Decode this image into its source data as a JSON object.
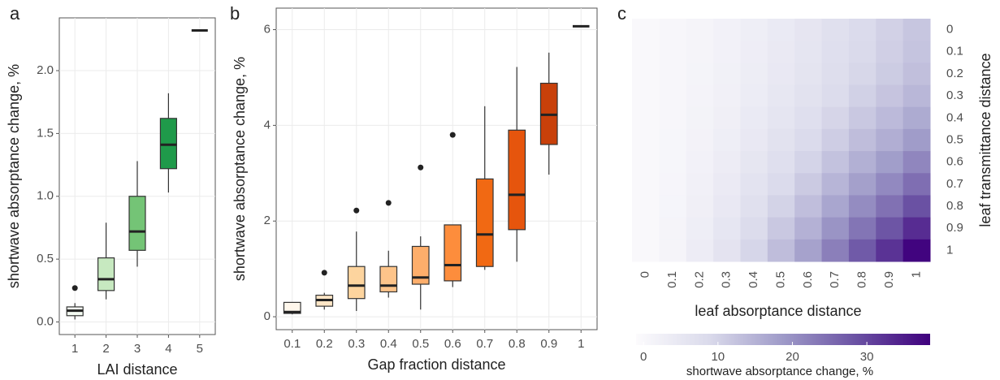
{
  "chart_data": [
    {
      "type": "box",
      "panel_label": "a",
      "xlabel": "LAI distance",
      "ylabel": "shortwave absorptance change, %",
      "categories": [
        "1",
        "2",
        "3",
        "4",
        "5"
      ],
      "min": [
        0.02,
        0.18,
        0.44,
        1.03,
        2.32
      ],
      "q1": [
        0.05,
        0.25,
        0.57,
        1.22,
        2.32
      ],
      "median": [
        0.09,
        0.34,
        0.72,
        1.41,
        2.32
      ],
      "q3": [
        0.12,
        0.51,
        1.0,
        1.62,
        2.32
      ],
      "max": [
        0.15,
        0.79,
        1.28,
        1.82,
        2.32
      ],
      "outliers": [
        [
          0.27
        ],
        [],
        [],
        [],
        []
      ],
      "colors": [
        "#f4fbf2",
        "#c7e9c0",
        "#74c476",
        "#1f9a4a",
        "#00441b"
      ],
      "ylim": [
        -0.1,
        2.42
      ],
      "yticks": [
        {
          "value": 0,
          "label": "0.0"
        },
        0.5,
        {
          "value": 1,
          "label": "1.0"
        },
        1.5,
        {
          "value": 2,
          "label": "2.0"
        }
      ],
      "grid": true
    },
    {
      "type": "box",
      "panel_label": "b",
      "xlabel": "Gap fraction distance",
      "ylabel": "shortwave absorptance change, %",
      "categories": [
        "0.1",
        "0.2",
        "0.3",
        "0.4",
        "0.5",
        "0.6",
        "0.7",
        "0.8",
        "0.9",
        "1"
      ],
      "min": [
        0.05,
        0.15,
        0.12,
        0.4,
        0.15,
        0.62,
        0.98,
        1.15,
        2.97,
        6.07
      ],
      "q1": [
        0.07,
        0.22,
        0.38,
        0.52,
        0.68,
        0.75,
        1.05,
        1.82,
        3.6,
        6.07
      ],
      "median": [
        0.1,
        0.35,
        0.65,
        0.65,
        0.82,
        1.08,
        1.72,
        2.55,
        4.22,
        6.07
      ],
      "q3": [
        0.3,
        0.45,
        1.05,
        1.05,
        1.47,
        1.92,
        2.88,
        3.9,
        4.88,
        6.07
      ],
      "max": [
        0.3,
        0.5,
        1.78,
        1.38,
        1.68,
        1.92,
        4.4,
        5.22,
        5.52,
        6.07
      ],
      "outliers": [
        [],
        [
          0.92
        ],
        [
          2.22
        ],
        [
          2.38
        ],
        [
          3.12
        ],
        [
          3.8
        ],
        [],
        [],
        [],
        []
      ],
      "colors": [
        "#fff7ec",
        "#fee6c6",
        "#fdd49e",
        "#fdc48a",
        "#fdae6b",
        "#fd8d3c",
        "#f16913",
        "#e6550d",
        "#c8400a",
        "#7f2704"
      ],
      "ylim": [
        -0.27,
        6.45
      ],
      "yticks": [
        0,
        2,
        4,
        6
      ],
      "grid": true
    },
    {
      "type": "heatmap",
      "panel_label": "c",
      "xlabel": "leaf absorptance distance",
      "ylabel": "leaf transmittance distance",
      "x": [
        "0",
        "0.1",
        "0.2",
        "0.3",
        "0.4",
        "0.5",
        "0.6",
        "0.7",
        "0.8",
        "0.9",
        "1"
      ],
      "y": [
        "0",
        "0.1",
        "0.2",
        "0.3",
        "0.4",
        "0.5",
        "0.6",
        "0.7",
        "0.8",
        "0.9",
        "1"
      ],
      "values": [
        [
          0,
          0.4,
          1.1,
          1.9,
          3.0,
          4.2,
          5.5,
          7.1,
          8.6,
          10.2,
          12
        ],
        [
          0,
          0.4,
          1.1,
          2.0,
          3.1,
          4.3,
          5.7,
          7.3,
          8.9,
          10.5,
          12.3
        ],
        [
          0,
          0.4,
          1.2,
          2.1,
          3.3,
          4.6,
          6.0,
          7.7,
          9.4,
          11.1,
          13
        ],
        [
          0,
          0.4,
          1.3,
          2.3,
          3.6,
          5.0,
          6.6,
          8.4,
          10.3,
          12.2,
          14.3
        ],
        [
          0,
          0.5,
          1.5,
          2.6,
          4.1,
          5.7,
          7.5,
          9.6,
          11.7,
          13.8,
          16.2
        ],
        [
          0,
          0.6,
          1.7,
          3.0,
          4.6,
          6.5,
          8.5,
          10.9,
          13.3,
          15.7,
          18.5
        ],
        [
          0,
          0.6,
          1.9,
          3.4,
          5.4,
          7.5,
          9.8,
          12.6,
          15.4,
          18.2,
          21.4
        ],
        [
          0,
          0.7,
          2.2,
          4.0,
          6.2,
          8.6,
          11.4,
          14.6,
          17.8,
          21.0,
          24.7
        ],
        [
          0,
          0.9,
          2.6,
          4.6,
          7.2,
          10.0,
          13.2,
          16.9,
          20.6,
          24.3,
          28.6
        ],
        [
          0,
          1.0,
          3.0,
          5.3,
          8.3,
          11.6,
          15.2,
          19.5,
          23.8,
          28.1,
          33.1
        ],
        [
          0,
          1.1,
          3.4,
          6.1,
          9.5,
          13.3,
          17.5,
          22.4,
          27.4,
          32.3,
          38
        ]
      ],
      "colormap": [
        "#fcfbfd",
        "#dadaeb",
        "#9e9ac8",
        "#6a51a3",
        "#3f007d"
      ],
      "clim": [
        -1,
        38.5
      ],
      "cticks": [
        0,
        10,
        20,
        30
      ],
      "colorbar_label": "shortwave absorptance change, %"
    }
  ]
}
